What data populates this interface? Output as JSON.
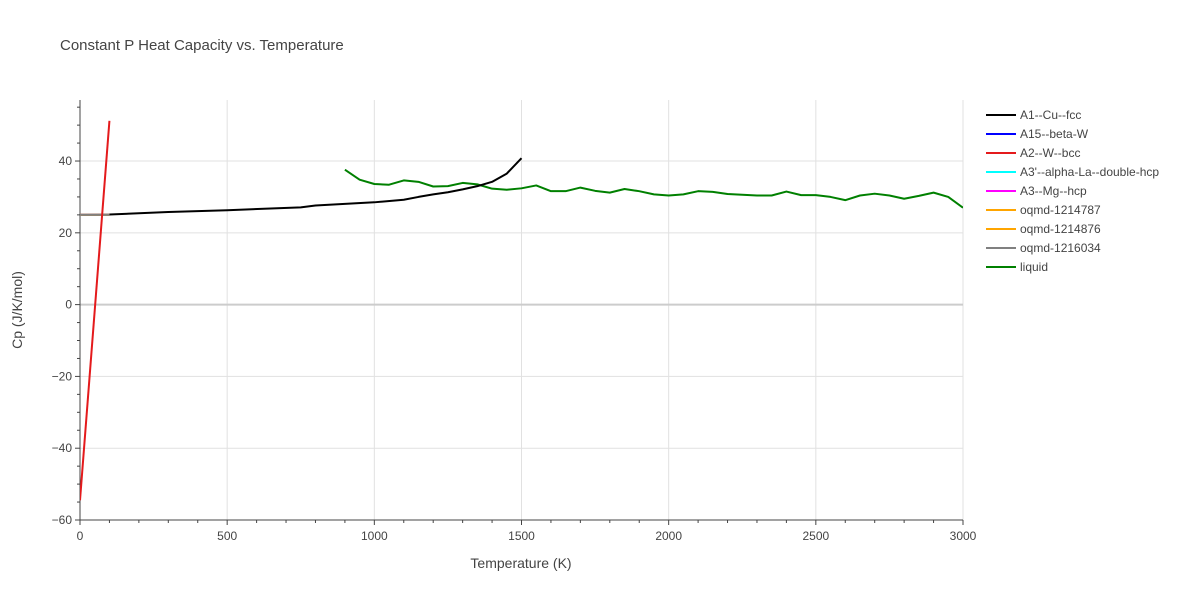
{
  "chart_data": {
    "type": "line",
    "title": "Constant P Heat Capacity vs. Temperature",
    "xlabel": "Temperature (K)",
    "ylabel": "Cp (J/K/mol)",
    "xlim": [
      0,
      3000
    ],
    "ylim": [
      -60,
      57
    ],
    "x_ticks": [
      0,
      500,
      1000,
      1500,
      2000,
      2500,
      3000
    ],
    "x_tick_labels": [
      "0",
      "500",
      "1000",
      "1500",
      "2000",
      "2500",
      "3000"
    ],
    "y_ticks": [
      -60,
      -40,
      -20,
      0,
      20,
      40
    ],
    "y_tick_labels": [
      "−60",
      "−40",
      "−20",
      "0",
      "20",
      "40"
    ],
    "grid": true,
    "legend_position": "right",
    "series": [
      {
        "name": "A1--Cu--fcc",
        "color": "#000000",
        "x": [
          0,
          100,
          300,
          500,
          750,
          800,
          1000,
          1100,
          1150,
          1200,
          1250,
          1300,
          1350,
          1400,
          1450,
          1500
        ],
        "y": [
          25.0,
          25.1,
          25.8,
          26.3,
          27.1,
          27.6,
          28.5,
          29.2,
          30.0,
          30.7,
          31.3,
          32.1,
          33.0,
          34.2,
          36.5,
          40.8
        ]
      },
      {
        "name": "A15--beta-W",
        "color": "#0000ff",
        "x": [
          0,
          100
        ],
        "y": [
          25.0,
          25.0
        ]
      },
      {
        "name": "A2--W--bcc",
        "color": "#e41a1c",
        "x": [
          0,
          100
        ],
        "y": [
          -54.5,
          51.2
        ]
      },
      {
        "name": "A3'--alpha-La--double-hcp",
        "color": "#00ffff",
        "x": [
          0,
          100
        ],
        "y": [
          25.0,
          25.0
        ]
      },
      {
        "name": "A3--Mg--hcp",
        "color": "#ff00ff",
        "x": [
          0,
          100
        ],
        "y": [
          25.0,
          25.0
        ]
      },
      {
        "name": "oqmd-1214787",
        "color": "#ffa500",
        "x": [
          0,
          100
        ],
        "y": [
          25.0,
          25.0
        ]
      },
      {
        "name": "oqmd-1214876",
        "color": "#ffa500",
        "x": [
          0,
          100
        ],
        "y": [
          25.0,
          25.0
        ]
      },
      {
        "name": "oqmd-1216034",
        "color": "#808080",
        "x": [
          0,
          100
        ],
        "y": [
          25.0,
          25.0
        ]
      },
      {
        "name": "liquid",
        "color": "#008000",
        "x": [
          900,
          950,
          1000,
          1050,
          1100,
          1150,
          1200,
          1250,
          1300,
          1350,
          1400,
          1450,
          1500,
          1550,
          1600,
          1650,
          1700,
          1750,
          1800,
          1850,
          1900,
          1950,
          2000,
          2050,
          2100,
          2150,
          2200,
          2250,
          2300,
          2350,
          2400,
          2450,
          2500,
          2550,
          2600,
          2650,
          2700,
          2750,
          2800,
          2850,
          2900,
          2950,
          3000
        ],
        "y": [
          37.6,
          34.8,
          33.6,
          33.4,
          34.6,
          34.2,
          32.9,
          33.0,
          33.9,
          33.5,
          32.3,
          32.0,
          32.4,
          33.2,
          31.6,
          31.6,
          32.6,
          31.7,
          31.2,
          32.2,
          31.6,
          30.7,
          30.4,
          30.7,
          31.6,
          31.4,
          30.8,
          30.6,
          30.4,
          30.4,
          31.5,
          30.5,
          30.5,
          30.0,
          29.1,
          30.4,
          30.9,
          30.4,
          29.5,
          30.3,
          31.2,
          30.0,
          27.0
        ]
      }
    ]
  }
}
